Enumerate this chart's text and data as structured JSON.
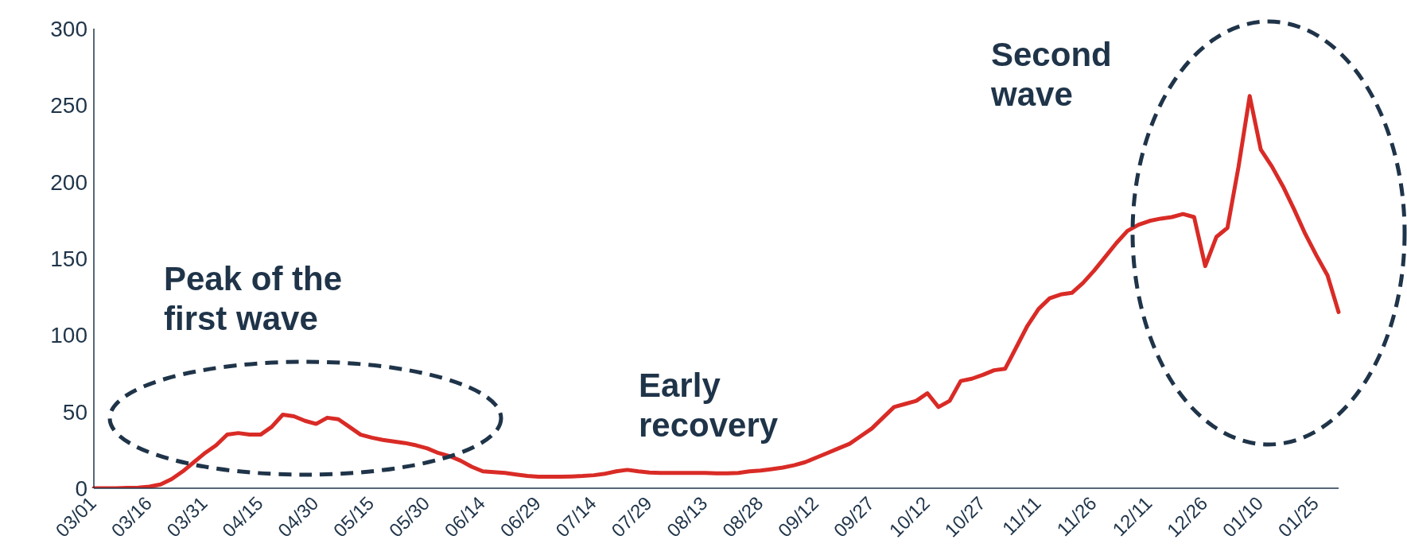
{
  "chart_data": {
    "type": "line",
    "categories": [
      "03/01",
      null,
      null,
      null,
      null,
      "03/16",
      null,
      null,
      null,
      null,
      "03/31",
      null,
      null,
      null,
      null,
      "04/15",
      null,
      null,
      null,
      null,
      "04/30",
      null,
      null,
      null,
      null,
      "05/15",
      null,
      null,
      null,
      null,
      "05/30",
      null,
      null,
      null,
      null,
      "06/14",
      null,
      null,
      null,
      null,
      "06/29",
      null,
      null,
      null,
      null,
      "07/14",
      null,
      null,
      null,
      null,
      "07/29",
      null,
      null,
      null,
      null,
      "08/13",
      null,
      null,
      null,
      null,
      "08/28",
      null,
      null,
      null,
      null,
      "09/12",
      null,
      null,
      null,
      null,
      "09/27",
      null,
      null,
      null,
      null,
      "10/12",
      null,
      null,
      null,
      null,
      "10/27",
      null,
      null,
      null,
      null,
      "11/11",
      null,
      null,
      null,
      null,
      "11/26",
      null,
      null,
      null,
      null,
      "12/11",
      null,
      null,
      null,
      null,
      "12/26",
      null,
      null,
      null,
      null,
      "01/10",
      null,
      null,
      null,
      null,
      "01/25",
      null,
      null
    ],
    "series": [
      {
        "color": "#d92b26",
        "values": [
          0,
          0,
          0,
          0.2,
          0.4,
          1,
          2.5,
          6,
          11,
          17,
          23,
          28,
          35,
          36,
          35,
          35,
          40,
          48,
          47,
          44,
          42,
          46,
          45,
          40,
          35,
          33,
          31.5,
          30.5,
          29.5,
          28,
          26,
          23,
          21,
          18,
          14,
          11,
          10.5,
          10,
          9,
          8,
          7.5,
          7.5,
          7.5,
          7.7,
          8,
          8.5,
          9.5,
          11,
          12,
          11,
          10.3,
          10,
          10,
          10,
          10,
          10,
          9.7,
          9.7,
          10,
          11,
          11.5,
          12.5,
          13.5,
          15,
          17,
          20,
          23,
          26,
          29,
          34,
          39,
          46,
          53,
          55,
          57,
          62,
          53,
          57,
          70,
          71.5,
          74,
          77,
          78,
          92,
          106,
          117,
          124,
          126.5,
          127.5,
          134,
          142,
          151,
          160,
          168,
          172,
          174.5,
          176,
          177,
          179,
          177,
          145,
          164,
          170,
          210,
          256,
          221,
          210,
          197,
          182,
          166,
          152,
          139,
          115
        ]
      }
    ],
    "ylim": [
      0,
      300
    ],
    "yticks": [
      0,
      50,
      100,
      150,
      200,
      250,
      300
    ],
    "grid": false,
    "legend": false,
    "marker": "none",
    "line_style": "solid",
    "annotations": [
      "Peak of the first wave",
      "Early recovery",
      "Second wave"
    ]
  }
}
